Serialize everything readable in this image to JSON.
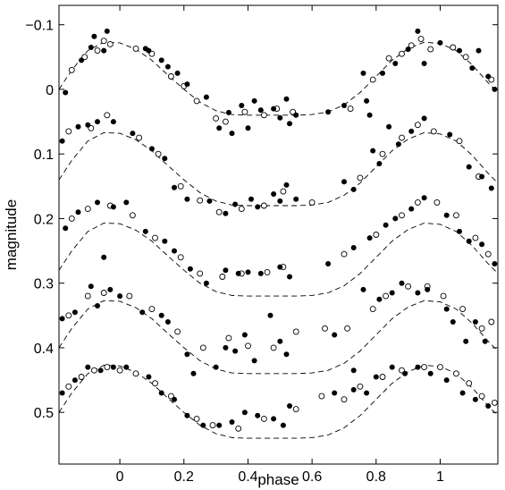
{
  "chart_data": {
    "type": "scatter",
    "title": "",
    "xlabel": "phase",
    "ylabel": "magnitude",
    "xlim": [
      -0.19,
      1.18
    ],
    "ylim": [
      0.58,
      -0.13
    ],
    "y_reversed": true,
    "grid": false,
    "legend": "none",
    "x_ticks": [
      0,
      0.2,
      0.4,
      0.6,
      0.8,
      1
    ],
    "x_tick_labels": [
      "0",
      "0.2",
      "0.4",
      "0.6",
      "0.8",
      "1"
    ],
    "y_ticks": [
      -0.1,
      0,
      0.1,
      0.2,
      0.3,
      0.4,
      0.5
    ],
    "y_tick_labels": [
      "−0.1",
      "0",
      "0.1",
      "0.2",
      "0.3",
      "0.4",
      "0.5"
    ],
    "series": [
      {
        "offset": 0.0,
        "model_curve": {
          "x": [
            -0.19,
            -0.15,
            -0.1,
            -0.05,
            0.0,
            0.05,
            0.1,
            0.15,
            0.2,
            0.25,
            0.3,
            0.35,
            0.4,
            0.45,
            0.5,
            0.55,
            0.6,
            0.65,
            0.7,
            0.75,
            0.8,
            0.85,
            0.9,
            0.95,
            1.0,
            1.05,
            1.1,
            1.15,
            1.18
          ],
          "y": [
            0.0,
            -0.03,
            -0.06,
            -0.073,
            -0.072,
            -0.062,
            -0.045,
            -0.022,
            0.0,
            0.02,
            0.033,
            0.039,
            0.04,
            0.04,
            0.04,
            0.04,
            0.039,
            0.035,
            0.024,
            0.005,
            -0.02,
            -0.045,
            -0.063,
            -0.073,
            -0.071,
            -0.06,
            -0.038,
            -0.01,
            0.005
          ]
        },
        "filled": {
          "x": [
            -0.17,
            -0.12,
            -0.09,
            -0.08,
            -0.05,
            -0.04,
            0.08,
            0.09,
            0.13,
            0.15,
            0.18,
            0.21,
            0.27,
            0.31,
            0.34,
            0.35,
            0.38,
            0.4,
            0.42,
            0.44,
            0.48,
            0.5,
            0.52,
            0.53,
            0.55,
            0.65,
            0.7,
            0.76,
            0.77,
            0.78,
            0.82,
            0.86,
            0.9,
            0.93,
            0.95,
            1.0,
            1.06,
            1.1,
            1.12,
            1.15,
            1.17
          ],
          "y": [
            0.005,
            -0.045,
            -0.065,
            -0.082,
            -0.06,
            -0.09,
            -0.063,
            -0.06,
            -0.045,
            -0.035,
            -0.025,
            -0.008,
            0.012,
            0.06,
            0.036,
            0.068,
            0.025,
            0.06,
            0.018,
            0.032,
            0.03,
            0.044,
            0.015,
            0.053,
            0.04,
            0.035,
            0.025,
            -0.025,
            0.018,
            0.04,
            -0.025,
            -0.04,
            -0.062,
            -0.09,
            -0.04,
            -0.072,
            -0.06,
            -0.033,
            -0.06,
            -0.02,
            0.0
          ]
        },
        "open": {
          "x": [
            -0.15,
            -0.11,
            -0.07,
            -0.05,
            -0.03,
            0.05,
            0.1,
            0.16,
            0.2,
            0.24,
            0.3,
            0.33,
            0.39,
            0.45,
            0.49,
            0.54,
            0.72,
            0.79,
            0.84,
            0.88,
            0.91,
            0.94,
            0.97,
            1.04,
            1.08,
            1.16
          ],
          "y": [
            -0.03,
            -0.05,
            -0.06,
            -0.075,
            -0.07,
            -0.063,
            -0.055,
            -0.02,
            -0.005,
            0.018,
            0.045,
            0.05,
            0.035,
            0.04,
            0.03,
            0.035,
            0.03,
            -0.015,
            -0.048,
            -0.055,
            -0.068,
            -0.078,
            -0.062,
            -0.065,
            -0.05,
            -0.015
          ]
        }
      },
      {
        "offset": 0.14,
        "model_curve": {
          "x": [
            -0.19,
            -0.15,
            -0.1,
            -0.05,
            0.0,
            0.05,
            0.1,
            0.15,
            0.2,
            0.25,
            0.3,
            0.35,
            0.4,
            0.45,
            0.5,
            0.55,
            0.6,
            0.65,
            0.7,
            0.75,
            0.8,
            0.85,
            0.9,
            0.95,
            1.0,
            1.05,
            1.1,
            1.15,
            1.18
          ],
          "y": [
            0.0,
            -0.03,
            -0.06,
            -0.073,
            -0.072,
            -0.062,
            -0.045,
            -0.022,
            0.0,
            0.02,
            0.033,
            0.039,
            0.04,
            0.04,
            0.04,
            0.04,
            0.039,
            0.035,
            0.024,
            0.005,
            -0.02,
            -0.045,
            -0.063,
            -0.073,
            -0.071,
            -0.06,
            -0.038,
            -0.01,
            0.005
          ]
        },
        "filled": {
          "x": [
            -0.18,
            -0.13,
            -0.1,
            -0.07,
            -0.02,
            0.04,
            0.1,
            0.14,
            0.17,
            0.21,
            0.28,
            0.33,
            0.36,
            0.41,
            0.43,
            0.48,
            0.5,
            0.52,
            0.55,
            0.7,
            0.73,
            0.79,
            0.81,
            0.84,
            0.87,
            0.91,
            0.95,
            1.03,
            1.09,
            1.13,
            1.16
          ],
          "y": [
            -0.06,
            -0.082,
            -0.085,
            -0.09,
            -0.09,
            -0.072,
            -0.048,
            -0.033,
            0.012,
            0.03,
            0.033,
            0.052,
            0.038,
            0.03,
            0.042,
            0.022,
            0.033,
            0.008,
            0.03,
            0.003,
            0.015,
            -0.045,
            -0.025,
            -0.082,
            -0.055,
            -0.075,
            -0.095,
            -0.07,
            -0.02,
            -0.005,
            0.013
          ]
        },
        "open": {
          "x": [
            -0.16,
            -0.09,
            -0.04,
            0.06,
            0.12,
            0.19,
            0.25,
            0.31,
            0.38,
            0.45,
            0.51,
            0.6,
            0.75,
            0.82,
            0.88,
            0.93,
            0.98,
            1.06,
            1.12
          ],
          "y": [
            -0.075,
            -0.08,
            -0.1,
            -0.065,
            -0.04,
            0.01,
            0.032,
            0.05,
            0.045,
            0.04,
            0.018,
            0.035,
            -0.003,
            -0.04,
            -0.065,
            -0.085,
            -0.075,
            -0.06,
            -0.005
          ]
        }
      },
      {
        "offset": 0.28,
        "model_curve": {
          "x": [
            -0.19,
            -0.15,
            -0.1,
            -0.05,
            0.0,
            0.05,
            0.1,
            0.15,
            0.2,
            0.25,
            0.3,
            0.35,
            0.4,
            0.45,
            0.5,
            0.55,
            0.6,
            0.65,
            0.7,
            0.75,
            0.8,
            0.85,
            0.9,
            0.95,
            1.0,
            1.05,
            1.1,
            1.15,
            1.18
          ],
          "y": [
            0.0,
            -0.03,
            -0.06,
            -0.073,
            -0.072,
            -0.062,
            -0.045,
            -0.022,
            0.0,
            0.02,
            0.033,
            0.039,
            0.04,
            0.04,
            0.04,
            0.04,
            0.039,
            0.035,
            0.024,
            0.005,
            -0.02,
            -0.045,
            -0.063,
            -0.073,
            -0.071,
            -0.06,
            -0.038,
            -0.01,
            0.005
          ]
        },
        "filled": {
          "x": [
            -0.17,
            -0.13,
            -0.07,
            -0.05,
            -0.02,
            0.02,
            0.08,
            0.14,
            0.17,
            0.22,
            0.27,
            0.33,
            0.37,
            0.4,
            0.44,
            0.5,
            0.53,
            0.65,
            0.73,
            0.78,
            0.83,
            0.86,
            0.91,
            0.95,
            1.02,
            1.06,
            1.09,
            1.13,
            1.17
          ],
          "y": [
            -0.065,
            -0.09,
            -0.105,
            -0.02,
            -0.098,
            -0.105,
            -0.06,
            -0.045,
            -0.03,
            -0.002,
            0.02,
            0.0,
            0.005,
            0.003,
            0.005,
            -0.005,
            0.01,
            -0.01,
            -0.035,
            -0.05,
            -0.07,
            -0.08,
            -0.095,
            -0.112,
            -0.085,
            -0.06,
            -0.045,
            -0.04,
            -0.01
          ]
        },
        "open": {
          "x": [
            -0.15,
            -0.1,
            -0.03,
            0.04,
            0.11,
            0.19,
            0.25,
            0.32,
            0.38,
            0.46,
            0.51,
            0.7,
            0.8,
            0.88,
            0.93,
            0.99,
            1.05,
            1.11,
            1.15
          ],
          "y": [
            -0.08,
            -0.095,
            -0.1,
            -0.085,
            -0.05,
            -0.02,
            0.005,
            0.01,
            0.005,
            0.003,
            -0.005,
            -0.025,
            -0.055,
            -0.085,
            -0.105,
            -0.105,
            -0.085,
            -0.05,
            -0.025
          ]
        }
      },
      {
        "offset": 0.4,
        "model_curve": {
          "x": [
            -0.19,
            -0.15,
            -0.1,
            -0.05,
            0.0,
            0.05,
            0.1,
            0.15,
            0.2,
            0.25,
            0.3,
            0.35,
            0.4,
            0.45,
            0.5,
            0.55,
            0.6,
            0.65,
            0.7,
            0.75,
            0.8,
            0.85,
            0.9,
            0.95,
            1.0,
            1.05,
            1.1,
            1.15,
            1.18
          ],
          "y": [
            0.0,
            -0.03,
            -0.06,
            -0.073,
            -0.072,
            -0.062,
            -0.045,
            -0.022,
            0.0,
            0.02,
            0.033,
            0.039,
            0.04,
            0.04,
            0.04,
            0.04,
            0.039,
            0.035,
            0.024,
            0.005,
            -0.02,
            -0.045,
            -0.063,
            -0.073,
            -0.071,
            -0.06,
            -0.038,
            -0.01,
            0.005
          ]
        },
        "filled": {
          "x": [
            -0.18,
            -0.14,
            -0.09,
            -0.07,
            -0.03,
            0.0,
            0.07,
            0.13,
            0.15,
            0.21,
            0.23,
            0.3,
            0.33,
            0.36,
            0.39,
            0.42,
            0.47,
            0.5,
            0.52,
            0.67,
            0.73,
            0.76,
            0.81,
            0.85,
            0.88,
            0.93,
            0.96,
            1.02,
            1.04,
            1.08,
            1.11,
            1.14
          ],
          "y": [
            -0.045,
            -0.055,
            -0.095,
            -0.065,
            -0.09,
            -0.08,
            -0.055,
            -0.05,
            -0.04,
            0.01,
            0.04,
            0.03,
            0.0,
            0.005,
            -0.02,
            0.02,
            -0.05,
            -0.01,
            0.01,
            -0.02,
            0.035,
            -0.09,
            -0.075,
            -0.085,
            -0.1,
            -0.085,
            -0.09,
            -0.06,
            -0.04,
            -0.01,
            -0.04,
            -0.01
          ]
        },
        "open": {
          "x": [
            -0.16,
            -0.1,
            -0.05,
            0.03,
            0.1,
            0.18,
            0.26,
            0.34,
            0.4,
            0.48,
            0.55,
            0.64,
            0.71,
            0.79,
            0.83,
            0.9,
            0.96,
            1.01,
            1.07,
            1.13,
            1.16
          ],
          "y": [
            -0.05,
            -0.08,
            -0.085,
            -0.08,
            -0.06,
            -0.025,
            0.0,
            -0.015,
            -0.003,
            0.0,
            -0.025,
            -0.03,
            -0.03,
            -0.06,
            -0.08,
            -0.095,
            -0.095,
            -0.08,
            -0.06,
            -0.03,
            -0.04
          ]
        }
      },
      {
        "offset": 0.5,
        "model_curve": {
          "x": [
            -0.19,
            -0.15,
            -0.1,
            -0.05,
            0.0,
            0.05,
            0.1,
            0.15,
            0.2,
            0.25,
            0.3,
            0.35,
            0.4,
            0.45,
            0.5,
            0.55,
            0.6,
            0.65,
            0.7,
            0.75,
            0.8,
            0.85,
            0.9,
            0.95,
            1.0,
            1.05,
            1.1,
            1.15,
            1.18
          ],
          "y": [
            0.0,
            -0.03,
            -0.06,
            -0.073,
            -0.072,
            -0.062,
            -0.045,
            -0.022,
            0.0,
            0.02,
            0.033,
            0.039,
            0.04,
            0.04,
            0.04,
            0.04,
            0.039,
            0.035,
            0.024,
            0.005,
            -0.02,
            -0.045,
            -0.063,
            -0.073,
            -0.071,
            -0.06,
            -0.038,
            -0.01,
            0.005
          ]
        },
        "filled": {
          "x": [
            -0.18,
            -0.14,
            -0.1,
            -0.06,
            -0.02,
            0.02,
            0.09,
            0.13,
            0.17,
            0.21,
            0.26,
            0.31,
            0.35,
            0.39,
            0.43,
            0.48,
            0.51,
            0.53,
            0.67,
            0.73,
            0.77,
            0.8,
            0.85,
            0.89,
            0.93,
            0.97,
            1.02,
            1.07,
            1.11,
            1.15
          ],
          "y": [
            -0.03,
            -0.05,
            -0.07,
            -0.065,
            -0.07,
            -0.07,
            -0.055,
            -0.03,
            -0.02,
            0.005,
            0.02,
            0.02,
            0.015,
            0.0,
            0.005,
            0.01,
            0.02,
            -0.01,
            -0.03,
            -0.035,
            -0.03,
            -0.055,
            -0.07,
            -0.06,
            -0.07,
            -0.06,
            -0.05,
            -0.03,
            -0.02,
            -0.01
          ]
        },
        "open": {
          "x": [
            -0.16,
            -0.12,
            -0.08,
            -0.04,
            0.0,
            0.05,
            0.11,
            0.16,
            0.24,
            0.29,
            0.37,
            0.45,
            0.55,
            0.63,
            0.7,
            0.75,
            0.82,
            0.88,
            0.95,
            1.0,
            1.05,
            1.09,
            1.13,
            1.17
          ],
          "y": [
            -0.04,
            -0.055,
            -0.065,
            -0.07,
            -0.065,
            -0.06,
            -0.045,
            -0.025,
            0.01,
            0.02,
            0.025,
            0.01,
            -0.005,
            -0.025,
            -0.02,
            -0.04,
            -0.055,
            -0.065,
            -0.07,
            -0.07,
            -0.06,
            -0.045,
            -0.025,
            -0.015
          ]
        }
      }
    ]
  }
}
